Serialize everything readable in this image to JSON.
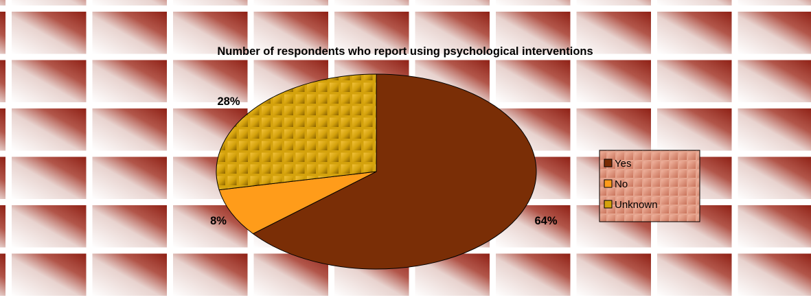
{
  "chart_data": {
    "type": "pie",
    "title": "Number of respondents who report using psychological interventions",
    "categories": [
      "Yes",
      "No",
      "Unknown"
    ],
    "values": [
      64,
      8,
      28
    ],
    "data_labels": [
      "64%",
      "8%",
      "28%"
    ],
    "legend": {
      "placement": "right",
      "entries": [
        "Yes",
        "No",
        "Unknown"
      ]
    },
    "colors": {
      "Yes": "#7a2e06",
      "No": "#ff9c1a",
      "Unknown": "#d4a20c"
    }
  }
}
